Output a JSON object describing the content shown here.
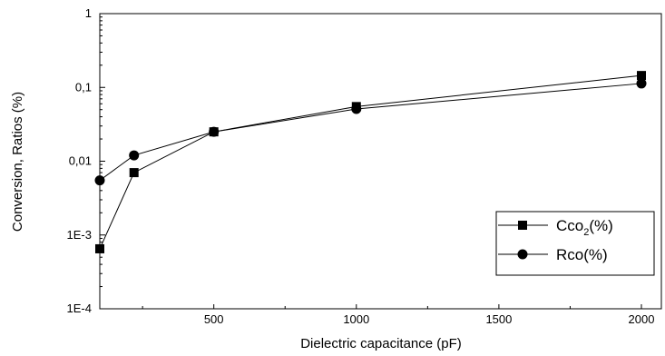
{
  "chart_data": {
    "type": "line",
    "title": "",
    "xlabel": "Dielectric capacitance (pF)",
    "ylabel": "Conversion, Ratios (%)",
    "xlim": [
      100,
      2070
    ],
    "ylim": [
      0.0001,
      1
    ],
    "yscale": "log",
    "grid": false,
    "legend_position": "right-bottom",
    "x_ticks": [
      500,
      1000,
      1500,
      2000
    ],
    "x_tick_labels": [
      "500",
      "1000",
      "1500",
      "2000"
    ],
    "y_ticks": [
      0.0001,
      0.001,
      0.01,
      0.1,
      1
    ],
    "y_tick_labels": [
      "1E-4",
      "1E-3",
      "0,01",
      "0,1",
      "1"
    ],
    "series": [
      {
        "legend_base": "Cco",
        "legend_sub": "2",
        "legend_suffix": "(%)",
        "marker": "square",
        "color": "#000000",
        "x": [
          100,
          220,
          500,
          1000,
          2000
        ],
        "y": [
          0.00065,
          0.007,
          0.025,
          0.055,
          0.145
        ]
      },
      {
        "legend_base": "Rco(%)",
        "legend_sub": "",
        "legend_suffix": "",
        "marker": "circle",
        "color": "#000000",
        "x": [
          100,
          220,
          500,
          1000,
          2000
        ],
        "y": [
          0.0055,
          0.012,
          0.025,
          0.051,
          0.113
        ]
      }
    ]
  }
}
